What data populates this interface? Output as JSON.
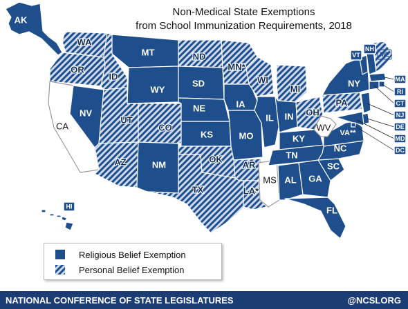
{
  "title": {
    "line1": "Non-Medical State Exemptions",
    "line2": "from School Immunization Requirements, 2018"
  },
  "colors": {
    "religious": "#1f4e8c",
    "personal_base": "#cdd9ec",
    "personal_hatch": "#1f4e8c",
    "none": "#ffffff",
    "footer": "#1c3d74",
    "border": "#ffffff"
  },
  "legend": {
    "religious_label": "Religious Belief Exemption",
    "personal_label": "Personal Belief Exemption"
  },
  "footer": {
    "org": "NATIONAL CONFERENCE OF STATE LEGISLATURES",
    "handle": "@NCSLORG"
  },
  "states": [
    {
      "abbr": "AK",
      "category": "religious"
    },
    {
      "abbr": "WA",
      "category": "personal"
    },
    {
      "abbr": "OR",
      "category": "personal"
    },
    {
      "abbr": "CA",
      "category": "none"
    },
    {
      "abbr": "NV",
      "category": "religious"
    },
    {
      "abbr": "ID",
      "category": "personal"
    },
    {
      "abbr": "MT",
      "category": "religious"
    },
    {
      "abbr": "WY",
      "category": "religious"
    },
    {
      "abbr": "UT",
      "category": "personal"
    },
    {
      "abbr": "CO",
      "category": "personal"
    },
    {
      "abbr": "AZ",
      "category": "personal"
    },
    {
      "abbr": "NM",
      "category": "religious"
    },
    {
      "abbr": "ND",
      "category": "personal"
    },
    {
      "abbr": "SD",
      "category": "religious"
    },
    {
      "abbr": "NE",
      "category": "religious"
    },
    {
      "abbr": "KS",
      "category": "religious"
    },
    {
      "abbr": "OK",
      "category": "personal"
    },
    {
      "abbr": "TX",
      "category": "personal"
    },
    {
      "abbr": "MN*",
      "category": "personal"
    },
    {
      "abbr": "IA",
      "category": "religious"
    },
    {
      "abbr": "MO",
      "category": "religious"
    },
    {
      "abbr": "AR",
      "category": "personal"
    },
    {
      "abbr": "LA*",
      "category": "personal"
    },
    {
      "abbr": "WI",
      "category": "personal"
    },
    {
      "abbr": "IL",
      "category": "religious"
    },
    {
      "abbr": "MS",
      "category": "none"
    },
    {
      "abbr": "MI",
      "category": "personal"
    },
    {
      "abbr": "IN",
      "category": "religious"
    },
    {
      "abbr": "OH",
      "category": "personal"
    },
    {
      "abbr": "KY",
      "category": "religious"
    },
    {
      "abbr": "TN",
      "category": "religious"
    },
    {
      "abbr": "AL",
      "category": "religious"
    },
    {
      "abbr": "GA",
      "category": "religious"
    },
    {
      "abbr": "FL",
      "category": "religious"
    },
    {
      "abbr": "SC",
      "category": "religious"
    },
    {
      "abbr": "NC",
      "category": "religious"
    },
    {
      "abbr": "VA**",
      "category": "religious"
    },
    {
      "abbr": "WV",
      "category": "none"
    },
    {
      "abbr": "PA",
      "category": "personal"
    },
    {
      "abbr": "NY",
      "category": "religious"
    },
    {
      "abbr": "VT",
      "category": "religious"
    },
    {
      "abbr": "NH",
      "category": "religious"
    },
    {
      "abbr": "ME",
      "category": "personal"
    },
    {
      "abbr": "MA",
      "category": "religious"
    },
    {
      "abbr": "RI",
      "category": "religious"
    },
    {
      "abbr": "CT",
      "category": "religious"
    },
    {
      "abbr": "NJ",
      "category": "religious"
    },
    {
      "abbr": "DE",
      "category": "religious"
    },
    {
      "abbr": "MD",
      "category": "religious"
    },
    {
      "abbr": "DC",
      "category": "religious"
    },
    {
      "abbr": "HI",
      "category": "religious"
    }
  ]
}
